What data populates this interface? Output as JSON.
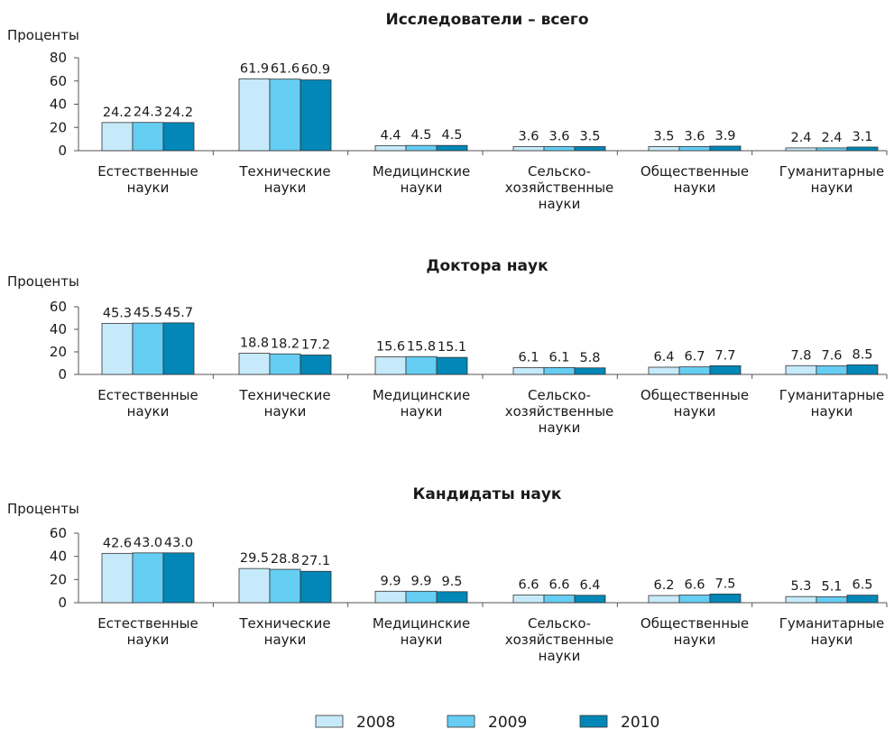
{
  "colors": {
    "2008": "#c6eafa",
    "2009": "#66cdf3",
    "2010": "#0287b8"
  },
  "legend": [
    "2008",
    "2009",
    "2010"
  ],
  "chart_data": [
    {
      "type": "bar",
      "title": "Исследователи – всего",
      "ylabel": "Проценты",
      "ylim": [
        0,
        80
      ],
      "yticks": [
        0,
        20,
        40,
        60,
        80
      ],
      "categories": [
        [
          "Естественные",
          "науки"
        ],
        [
          "Технические",
          "науки"
        ],
        [
          "Медицинские",
          "науки"
        ],
        [
          "Сельско-",
          "хозяйственные",
          "науки"
        ],
        [
          "Общественные",
          "науки"
        ],
        [
          "Гуманитарные",
          "науки"
        ]
      ],
      "series": [
        {
          "name": "2008",
          "values": [
            24.2,
            61.9,
            4.4,
            3.6,
            3.5,
            2.4
          ],
          "labels": [
            "24.2",
            "61.9",
            "4.4",
            "3.6",
            "3.5",
            "2.4"
          ]
        },
        {
          "name": "2009",
          "values": [
            24.3,
            61.6,
            4.5,
            3.6,
            3.6,
            2.4
          ],
          "labels": [
            "24.3",
            "61.6",
            "4.5",
            "3.6",
            "3.6",
            "2.4"
          ]
        },
        {
          "name": "2010",
          "values": [
            24.2,
            60.9,
            4.5,
            3.5,
            3.9,
            3.1
          ],
          "labels": [
            "24.2",
            "60.9",
            "4.5",
            "3.5",
            "3.9",
            "3.1"
          ]
        }
      ]
    },
    {
      "type": "bar",
      "title": "Доктора наук",
      "ylabel": "Проценты",
      "ylim": [
        0,
        60
      ],
      "yticks": [
        0,
        20,
        40,
        60
      ],
      "categories": [
        [
          "Естественные",
          "науки"
        ],
        [
          "Технические",
          "науки"
        ],
        [
          "Медицинские",
          "науки"
        ],
        [
          "Сельско-",
          "хозяйственные",
          "науки"
        ],
        [
          "Общественные",
          "науки"
        ],
        [
          "Гуманитарные",
          "науки"
        ]
      ],
      "series": [
        {
          "name": "2008",
          "values": [
            45.3,
            18.8,
            15.6,
            6.1,
            6.4,
            7.8
          ],
          "labels": [
            "45.3",
            "18.8",
            "15.6",
            "6.1",
            "6.4",
            "7.8"
          ]
        },
        {
          "name": "2009",
          "values": [
            45.5,
            18.2,
            15.8,
            6.1,
            6.7,
            7.6
          ],
          "labels": [
            "45.5",
            "18.2",
            "15.8",
            "6.1",
            "6.7",
            "7.6"
          ]
        },
        {
          "name": "2010",
          "values": [
            45.7,
            17.2,
            15.1,
            5.8,
            7.7,
            8.5
          ],
          "labels": [
            "45.7",
            "17.2",
            "15.1",
            "5.8",
            "7.7",
            "8.5"
          ]
        }
      ]
    },
    {
      "type": "bar",
      "title": "Кандидаты наук",
      "ylabel": "Проценты",
      "ylim": [
        0,
        60
      ],
      "yticks": [
        0,
        20,
        40,
        60
      ],
      "categories": [
        [
          "Естественные",
          "науки"
        ],
        [
          "Технические",
          "науки"
        ],
        [
          "Медицинские",
          "науки"
        ],
        [
          "Сельско-",
          "хозяйственные",
          "науки"
        ],
        [
          "Общественные",
          "науки"
        ],
        [
          "Гуманитарные",
          "науки"
        ]
      ],
      "series": [
        {
          "name": "2008",
          "values": [
            42.6,
            29.5,
            9.9,
            6.6,
            6.2,
            5.3
          ],
          "labels": [
            "42.6",
            "29.5",
            "9.9",
            "6.6",
            "6.2",
            "5.3"
          ]
        },
        {
          "name": "2009",
          "values": [
            43.0,
            28.8,
            9.9,
            6.6,
            6.6,
            5.1
          ],
          "labels": [
            "43.0",
            "28.8",
            "9.9",
            "6.6",
            "6.6",
            "5.1"
          ]
        },
        {
          "name": "2010",
          "values": [
            43.0,
            27.1,
            9.5,
            6.4,
            7.5,
            6.5
          ],
          "labels": [
            "43.0",
            "27.1",
            "9.5",
            "6.4",
            "7.5",
            "6.5"
          ]
        }
      ]
    }
  ]
}
